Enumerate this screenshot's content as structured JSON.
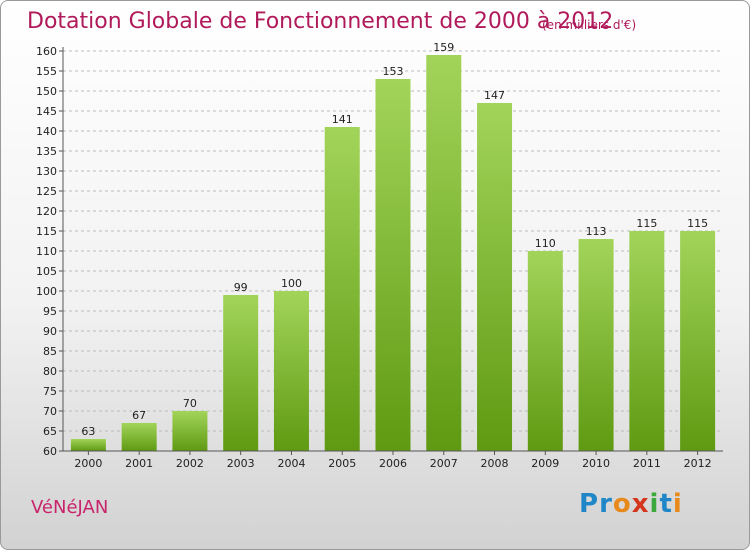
{
  "header": {
    "title": "Dotation Globale de Fonctionnement de 2000 à 2012",
    "unit": "(en milliers d'€)"
  },
  "footer": {
    "commune": "VéNéJAN",
    "brand_logo": "Proxiti",
    "logo_letter_colors": [
      "#1f86c7",
      "#1f86c7",
      "#e8891c",
      "#d4351c",
      "#3aa83a",
      "#1f86c7",
      "#e8891c"
    ]
  },
  "colors": {
    "title": "#b01a5a",
    "bar_light": "#a2d45a",
    "bar_dark": "#5f9a12",
    "grid": "#bbbbbb",
    "axis": "#555555"
  },
  "chart_data": {
    "type": "bar",
    "title": "Dotation Globale de Fonctionnement de 2000 à 2012",
    "subtitle": "(en milliers d'€)",
    "xlabel": "",
    "ylabel": "",
    "categories": [
      "2000",
      "2001",
      "2002",
      "2003",
      "2004",
      "2005",
      "2006",
      "2007",
      "2008",
      "2009",
      "2010",
      "2011",
      "2012"
    ],
    "values": [
      63,
      67,
      70,
      99,
      100,
      141,
      153,
      159,
      147,
      110,
      113,
      115,
      115
    ],
    "data_labels": [
      "63",
      "67",
      "70",
      "99",
      "100",
      "141",
      "153",
      "159",
      "147",
      "110",
      "113",
      "115",
      "115"
    ],
    "ylim": [
      60,
      160
    ],
    "yticks": [
      "60",
      "65",
      "70",
      "75",
      "80",
      "85",
      "90",
      "95",
      "100",
      "105",
      "110",
      "115",
      "120",
      "125",
      "130",
      "135",
      "140",
      "145",
      "150",
      "155",
      "160"
    ],
    "grid": true,
    "legend": "none"
  }
}
